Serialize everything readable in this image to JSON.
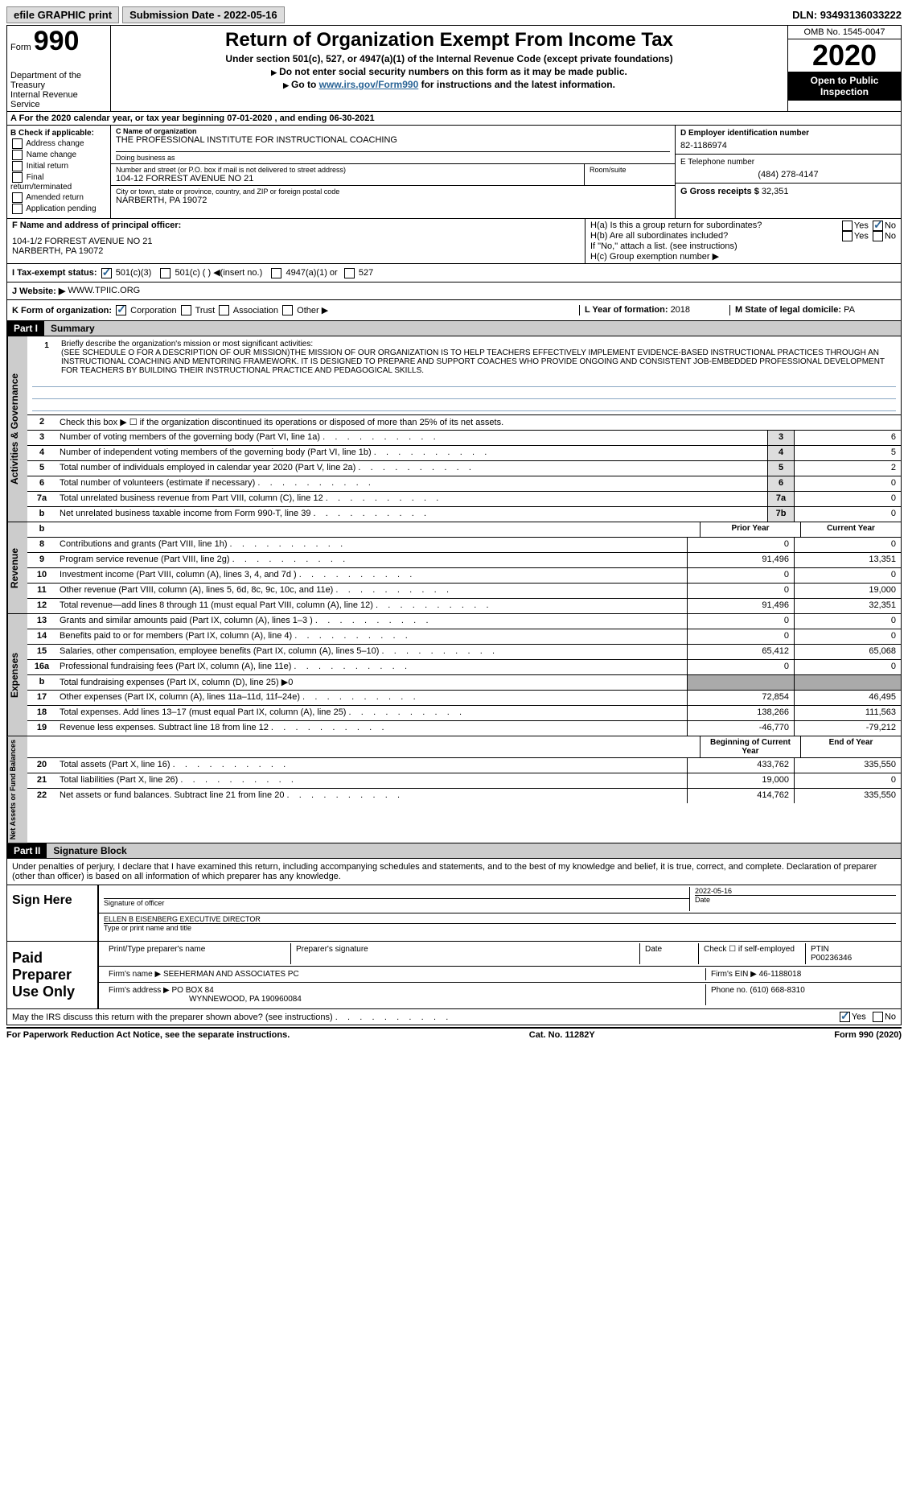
{
  "topbar": {
    "efile": "efile GRAPHIC print",
    "submission_label": "Submission Date - ",
    "submission_date": "2022-05-16",
    "dln_label": "DLN: ",
    "dln": "93493136033222"
  },
  "header": {
    "form_word": "Form",
    "form_num": "990",
    "dept": "Department of the Treasury\nInternal Revenue Service",
    "title": "Return of Organization Exempt From Income Tax",
    "sub1": "Under section 501(c), 527, or 4947(a)(1) of the Internal Revenue Code (except private foundations)",
    "sub2": "Do not enter social security numbers on this form as it may be made public.",
    "sub3_pre": "Go to ",
    "sub3_link": "www.irs.gov/Form990",
    "sub3_post": " for instructions and the latest information.",
    "omb": "OMB No. 1545-0047",
    "year": "2020",
    "open": "Open to Public Inspection"
  },
  "row_a": "A   For the 2020 calendar year, or tax year beginning 07-01-2020    , and ending 06-30-2021",
  "col_b": {
    "hdr": "B Check if applicable:",
    "items": [
      "Address change",
      "Name change",
      "Initial return",
      "Final return/terminated",
      "Amended return",
      "Application pending"
    ]
  },
  "col_c": {
    "name_label": "C Name of organization",
    "name": "THE PROFESSIONAL INSTITUTE FOR INSTRUCTIONAL COACHING",
    "dba_label": "Doing business as",
    "street_label": "Number and street (or P.O. box if mail is not delivered to street address)",
    "street": "104-12 FORREST AVENUE NO 21",
    "room_label": "Room/suite",
    "city_label": "City or town, state or province, country, and ZIP or foreign postal code",
    "city": "NARBERTH, PA   19072"
  },
  "col_d": {
    "ein_label": "D Employer identification number",
    "ein": "82-1186974",
    "phone_label": "E Telephone number",
    "phone": "(484) 278-4147",
    "gross_label": "G Gross receipts $ ",
    "gross": "32,351"
  },
  "sec_f": {
    "label": "F  Name and address of principal officer:",
    "addr1": "104-1/2 FORREST AVENUE NO 21",
    "addr2": "NARBERTH, PA   19072"
  },
  "sec_h": {
    "ha": "H(a)  Is this a group return for subordinates?",
    "hb": "H(b)  Are all subordinates included?",
    "hb2": "If \"No,\" attach a list. (see instructions)",
    "hc": "H(c)  Group exemption number ▶",
    "yes": "Yes",
    "no": "No"
  },
  "sec_i": {
    "label": "I    Tax-exempt status:",
    "opts": [
      "501(c)(3)",
      "501(c) (  ) ◀(insert no.)",
      "4947(a)(1) or",
      "527"
    ]
  },
  "sec_j": {
    "label": "J   Website: ▶",
    "val": "WWW.TPIIC.ORG"
  },
  "sec_k": {
    "label": "K Form of organization:",
    "opts": [
      "Corporation",
      "Trust",
      "Association",
      "Other ▶"
    ],
    "l_label": "L Year of formation: ",
    "l_val": "2018",
    "m_label": "M State of legal domicile: ",
    "m_val": "PA"
  },
  "part1": {
    "hdr": "Part I",
    "title": "Summary"
  },
  "mission": {
    "label": "Briefly describe the organization's mission or most significant activities:",
    "text": "(SEE SCHEDULE O FOR A DESCRIPTION OF OUR MISSION)THE MISSION OF OUR ORGANIZATION IS TO HELP TEACHERS EFFECTIVELY IMPLEMENT EVIDENCE-BASED INSTRUCTIONAL PRACTICES THROUGH AN INSTRUCTIONAL COACHING AND MENTORING FRAMEWORK. IT IS DESIGNED TO PREPARE AND SUPPORT COACHES WHO PROVIDE ONGOING AND CONSISTENT JOB-EMBEDDED PROFESSIONAL DEVELOPMENT FOR TEACHERS BY BUILDING THEIR INSTRUCTIONAL PRACTICE AND PEDAGOGICAL SKILLS."
  },
  "gov_lines": [
    {
      "n": "2",
      "d": "Check this box ▶ ☐  if the organization discontinued its operations or disposed of more than 25% of its net assets.",
      "box": "",
      "v": ""
    },
    {
      "n": "3",
      "d": "Number of voting members of the governing body (Part VI, line 1a)",
      "box": "3",
      "v": "6"
    },
    {
      "n": "4",
      "d": "Number of independent voting members of the governing body (Part VI, line 1b)",
      "box": "4",
      "v": "5"
    },
    {
      "n": "5",
      "d": "Total number of individuals employed in calendar year 2020 (Part V, line 2a)",
      "box": "5",
      "v": "2"
    },
    {
      "n": "6",
      "d": "Total number of volunteers (estimate if necessary)",
      "box": "6",
      "v": "0"
    },
    {
      "n": "7a",
      "d": "Total unrelated business revenue from Part VIII, column (C), line 12",
      "box": "7a",
      "v": "0"
    },
    {
      "n": "b",
      "d": "Net unrelated business taxable income from Form 990-T, line 39",
      "box": "7b",
      "v": "0"
    }
  ],
  "col_hdrs": {
    "prior": "Prior Year",
    "current": "Current Year"
  },
  "rev_lines": [
    {
      "n": "8",
      "d": "Contributions and grants (Part VIII, line 1h)",
      "p": "0",
      "c": "0"
    },
    {
      "n": "9",
      "d": "Program service revenue (Part VIII, line 2g)",
      "p": "91,496",
      "c": "13,351"
    },
    {
      "n": "10",
      "d": "Investment income (Part VIII, column (A), lines 3, 4, and 7d )",
      "p": "0",
      "c": "0"
    },
    {
      "n": "11",
      "d": "Other revenue (Part VIII, column (A), lines 5, 6d, 8c, 9c, 10c, and 11e)",
      "p": "0",
      "c": "19,000"
    },
    {
      "n": "12",
      "d": "Total revenue—add lines 8 through 11 (must equal Part VIII, column (A), line 12)",
      "p": "91,496",
      "c": "32,351"
    }
  ],
  "exp_lines": [
    {
      "n": "13",
      "d": "Grants and similar amounts paid (Part IX, column (A), lines 1–3 )",
      "p": "0",
      "c": "0"
    },
    {
      "n": "14",
      "d": "Benefits paid to or for members (Part IX, column (A), line 4)",
      "p": "0",
      "c": "0"
    },
    {
      "n": "15",
      "d": "Salaries, other compensation, employee benefits (Part IX, column (A), lines 5–10)",
      "p": "65,412",
      "c": "65,068"
    },
    {
      "n": "16a",
      "d": "Professional fundraising fees (Part IX, column (A), line 11e)",
      "p": "0",
      "c": "0"
    },
    {
      "n": "b",
      "d": "Total fundraising expenses (Part IX, column (D), line 25) ▶0",
      "p": "",
      "c": "",
      "gray": true
    },
    {
      "n": "17",
      "d": "Other expenses (Part IX, column (A), lines 11a–11d, 11f–24e)",
      "p": "72,854",
      "c": "46,495"
    },
    {
      "n": "18",
      "d": "Total expenses. Add lines 13–17 (must equal Part IX, column (A), line 25)",
      "p": "138,266",
      "c": "111,563"
    },
    {
      "n": "19",
      "d": "Revenue less expenses. Subtract line 18 from line 12",
      "p": "-46,770",
      "c": "-79,212"
    }
  ],
  "net_hdrs": {
    "begin": "Beginning of Current Year",
    "end": "End of Year"
  },
  "net_lines": [
    {
      "n": "20",
      "d": "Total assets (Part X, line 16)",
      "p": "433,762",
      "c": "335,550"
    },
    {
      "n": "21",
      "d": "Total liabilities (Part X, line 26)",
      "p": "19,000",
      "c": "0"
    },
    {
      "n": "22",
      "d": "Net assets or fund balances. Subtract line 21 from line 20",
      "p": "414,762",
      "c": "335,550"
    }
  ],
  "part2": {
    "hdr": "Part II",
    "title": "Signature Block"
  },
  "sig": {
    "penalty": "Under penalties of perjury, I declare that I have examined this return, including accompanying schedules and statements, and to the best of my knowledge and belief, it is true, correct, and complete. Declaration of preparer (other than officer) is based on all information of which preparer has any knowledge.",
    "sign_here": "Sign Here",
    "sig_officer": "Signature of officer",
    "date": "Date",
    "date_val": "2022-05-16",
    "name": "ELLEN B EISENBERG  EXECUTIVE DIRECTOR",
    "name_label": "Type or print name and title"
  },
  "paid": {
    "label": "Paid Preparer Use Only",
    "print_label": "Print/Type preparer's name",
    "sig_label": "Preparer's signature",
    "date_label": "Date",
    "check_label": "Check ☐ if self-employed",
    "ptin_label": "PTIN",
    "ptin": "P00236346",
    "firm_name_label": "Firm's name     ▶",
    "firm_name": "SEEHERMAN AND ASSOCIATES PC",
    "firm_ein_label": "Firm's EIN ▶",
    "firm_ein": "46-1188018",
    "firm_addr_label": "Firm's address ▶",
    "firm_addr": "PO BOX 84",
    "firm_addr2": "WYNNEWOOD, PA   190960084",
    "phone_label": "Phone no. ",
    "phone": "(610) 668-8310"
  },
  "may": {
    "text": "May the IRS discuss this return with the preparer shown above? (see instructions)",
    "yes": "Yes",
    "no": "No"
  },
  "footer": {
    "left": "For Paperwork Reduction Act Notice, see the separate instructions.",
    "mid": "Cat. No. 11282Y",
    "right": "Form 990 (2020)"
  },
  "side_labels": {
    "gov": "Activities & Governance",
    "rev": "Revenue",
    "exp": "Expenses",
    "net": "Net Assets or Fund Balances"
  }
}
